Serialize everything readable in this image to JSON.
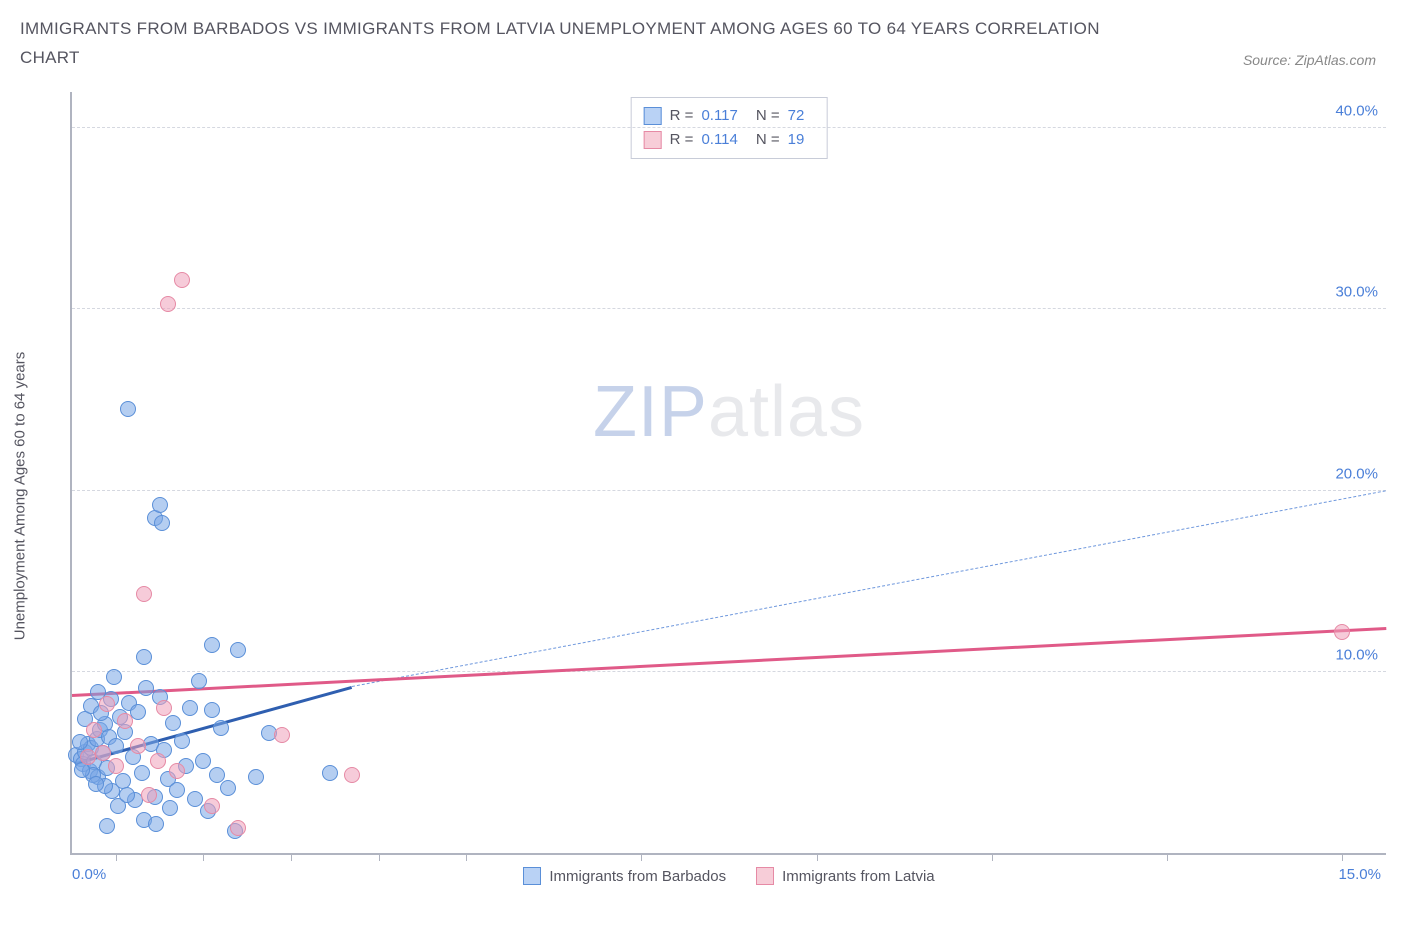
{
  "title": "IMMIGRANTS FROM BARBADOS VS IMMIGRANTS FROM LATVIA UNEMPLOYMENT AMONG AGES 60 TO 64 YEARS CORRELATION CHART",
  "source": "Source: ZipAtlas.com",
  "chart": {
    "type": "scatter",
    "background_color": "#ffffff",
    "grid_color": "#d5d8e0",
    "axis_color": "#b0b4c0",
    "label_color": "#4a7fd8",
    "text_color": "#555560",
    "y_axis_title": "Unemployment Among Ages 60 to 64 years",
    "x_range": [
      0,
      15
    ],
    "y_range": [
      0,
      42
    ],
    "y_ticks": [
      {
        "value": 10,
        "label": "10.0%"
      },
      {
        "value": 20,
        "label": "20.0%"
      },
      {
        "value": 30,
        "label": "30.0%"
      },
      {
        "value": 40,
        "label": "40.0%"
      }
    ],
    "x_tick_positions": [
      0.5,
      1.5,
      2.5,
      3.5,
      4.5,
      6.5,
      8.5,
      10.5,
      12.5,
      14.5
    ],
    "x_label_start": "0.0%",
    "x_label_end": "15.0%",
    "watermark": {
      "part1": "ZIP",
      "part2": "atlas"
    },
    "legend_stats": [
      {
        "swatch_fill": "#b9d2f5",
        "swatch_border": "#5a8fd8",
        "r_label": "R =",
        "r_value": "0.117",
        "n_label": "N =",
        "n_value": "72"
      },
      {
        "swatch_fill": "#f7cdd8",
        "swatch_border": "#e68aa5",
        "r_label": "R =",
        "r_value": "0.114",
        "n_label": "N =",
        "n_value": "19"
      }
    ],
    "series_legend": [
      {
        "swatch_fill": "#b9d2f5",
        "swatch_border": "#5a8fd8",
        "label": "Immigrants from Barbados"
      },
      {
        "swatch_fill": "#f7cdd8",
        "swatch_border": "#e68aa5",
        "label": "Immigrants from Latvia"
      }
    ],
    "series": [
      {
        "name": "barbados",
        "fill": "rgba(120,165,230,0.55)",
        "stroke": "#5a8fd8",
        "marker_size": 16,
        "trend": {
          "x1": 0.05,
          "y1": 5.0,
          "x2": 3.2,
          "y2": 9.2,
          "solid_color": "#2f5fb0",
          "solid_width": 3,
          "dash_x2": 15.0,
          "dash_y2": 20.0,
          "dash_color": "#6f98dd",
          "dash_width": 1.5
        },
        "points": [
          {
            "x": 0.05,
            "y": 5.4
          },
          {
            "x": 0.1,
            "y": 5.2
          },
          {
            "x": 0.12,
            "y": 4.9
          },
          {
            "x": 0.15,
            "y": 5.6
          },
          {
            "x": 0.18,
            "y": 6.0
          },
          {
            "x": 0.2,
            "y": 4.5
          },
          {
            "x": 0.22,
            "y": 5.8
          },
          {
            "x": 0.25,
            "y": 5.0
          },
          {
            "x": 0.28,
            "y": 6.3
          },
          {
            "x": 0.3,
            "y": 4.2
          },
          {
            "x": 0.32,
            "y": 6.8
          },
          {
            "x": 0.35,
            "y": 5.5
          },
          {
            "x": 0.38,
            "y": 7.1
          },
          {
            "x": 0.4,
            "y": 4.7
          },
          {
            "x": 0.42,
            "y": 6.4
          },
          {
            "x": 0.46,
            "y": 3.4
          },
          {
            "x": 0.5,
            "y": 5.9
          },
          {
            "x": 0.55,
            "y": 7.5
          },
          {
            "x": 0.58,
            "y": 4.0
          },
          {
            "x": 0.6,
            "y": 6.7
          },
          {
            "x": 0.65,
            "y": 8.3
          },
          {
            "x": 0.7,
            "y": 5.3
          },
          {
            "x": 0.72,
            "y": 2.9
          },
          {
            "x": 0.75,
            "y": 7.8
          },
          {
            "x": 0.8,
            "y": 4.4
          },
          {
            "x": 0.85,
            "y": 9.1
          },
          {
            "x": 0.9,
            "y": 6.0
          },
          {
            "x": 0.95,
            "y": 3.1
          },
          {
            "x": 1.0,
            "y": 8.6
          },
          {
            "x": 1.05,
            "y": 5.7
          },
          {
            "x": 0.4,
            "y": 1.5
          },
          {
            "x": 0.82,
            "y": 1.8
          },
          {
            "x": 0.3,
            "y": 8.9
          },
          {
            "x": 0.48,
            "y": 9.7
          },
          {
            "x": 1.1,
            "y": 4.1
          },
          {
            "x": 1.15,
            "y": 7.2
          },
          {
            "x": 1.2,
            "y": 3.5
          },
          {
            "x": 1.25,
            "y": 6.2
          },
          {
            "x": 1.3,
            "y": 4.8
          },
          {
            "x": 1.35,
            "y": 8.0
          },
          {
            "x": 1.4,
            "y": 3.0
          },
          {
            "x": 1.45,
            "y": 9.5
          },
          {
            "x": 1.5,
            "y": 5.1
          },
          {
            "x": 1.55,
            "y": 2.3
          },
          {
            "x": 1.6,
            "y": 11.5
          },
          {
            "x": 1.65,
            "y": 4.3
          },
          {
            "x": 1.7,
            "y": 6.9
          },
          {
            "x": 1.78,
            "y": 3.6
          },
          {
            "x": 1.86,
            "y": 1.2
          },
          {
            "x": 1.9,
            "y": 11.2
          },
          {
            "x": 1.6,
            "y": 7.9
          },
          {
            "x": 1.12,
            "y": 2.5
          },
          {
            "x": 0.82,
            "y": 10.8
          },
          {
            "x": 2.1,
            "y": 4.2
          },
          {
            "x": 2.25,
            "y": 6.6
          },
          {
            "x": 2.95,
            "y": 4.4
          },
          {
            "x": 0.64,
            "y": 24.5
          },
          {
            "x": 0.95,
            "y": 18.5
          },
          {
            "x": 1.0,
            "y": 19.2
          },
          {
            "x": 1.03,
            "y": 18.2
          },
          {
            "x": 0.38,
            "y": 3.7
          },
          {
            "x": 0.52,
            "y": 2.6
          },
          {
            "x": 0.96,
            "y": 1.6
          },
          {
            "x": 0.15,
            "y": 7.4
          },
          {
            "x": 0.22,
            "y": 8.1
          },
          {
            "x": 0.24,
            "y": 4.3
          },
          {
            "x": 0.09,
            "y": 6.1
          },
          {
            "x": 0.33,
            "y": 7.7
          },
          {
            "x": 0.27,
            "y": 3.8
          },
          {
            "x": 0.44,
            "y": 8.5
          },
          {
            "x": 0.63,
            "y": 3.2
          },
          {
            "x": 0.11,
            "y": 4.6
          }
        ]
      },
      {
        "name": "latvia",
        "fill": "rgba(238,160,185,0.55)",
        "stroke": "#e68aa5",
        "marker_size": 16,
        "trend": {
          "x1": 0.0,
          "y1": 8.8,
          "x2": 15.0,
          "y2": 12.5,
          "solid_color": "#e05a88",
          "solid_width": 3
        },
        "points": [
          {
            "x": 0.18,
            "y": 5.3
          },
          {
            "x": 0.25,
            "y": 6.8
          },
          {
            "x": 0.35,
            "y": 5.5
          },
          {
            "x": 0.4,
            "y": 8.2
          },
          {
            "x": 0.5,
            "y": 4.8
          },
          {
            "x": 0.6,
            "y": 7.3
          },
          {
            "x": 0.75,
            "y": 5.9
          },
          {
            "x": 0.88,
            "y": 3.2
          },
          {
            "x": 0.98,
            "y": 5.1
          },
          {
            "x": 1.05,
            "y": 8.0
          },
          {
            "x": 1.2,
            "y": 4.5
          },
          {
            "x": 1.6,
            "y": 2.6
          },
          {
            "x": 1.9,
            "y": 1.4
          },
          {
            "x": 2.4,
            "y": 6.5
          },
          {
            "x": 3.2,
            "y": 4.3
          },
          {
            "x": 0.82,
            "y": 14.3
          },
          {
            "x": 1.1,
            "y": 30.3
          },
          {
            "x": 1.25,
            "y": 31.6
          },
          {
            "x": 14.5,
            "y": 12.2
          }
        ]
      }
    ]
  }
}
